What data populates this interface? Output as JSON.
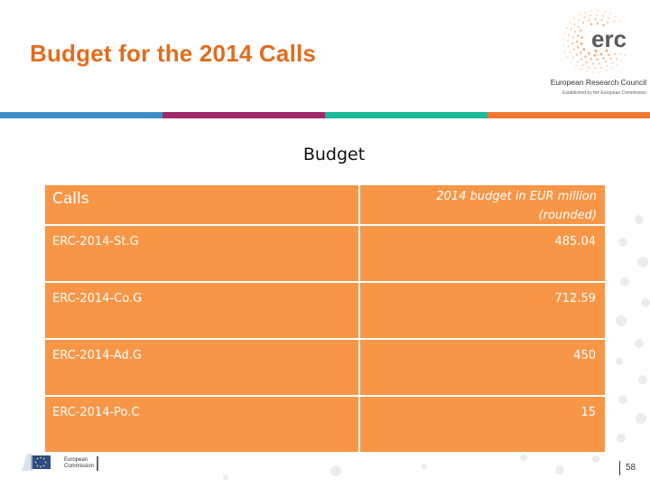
{
  "slide": {
    "title": "Budget for the 2014 Calls",
    "page_number": "58"
  },
  "logo": {
    "mark": "erc",
    "name": "European Research Council",
    "tagline": "Established by the European Commission"
  },
  "footer": {
    "ec_label_line1": "European",
    "ec_label_line2": "Commission"
  },
  "colors": {
    "title": "#e36c1c",
    "table_fill": "#f79646",
    "bar_blue": "#3b8ec8",
    "bar_purple": "#a0286a",
    "bar_teal": "#1cb89a",
    "bar_orange": "#f0782d"
  },
  "table": {
    "caption": "Budget",
    "headers": {
      "calls": "Calls",
      "budget": "2014 budget in EUR million (rounded)"
    },
    "rows": [
      {
        "call": "ERC-2014-St.G",
        "budget": "485.04"
      },
      {
        "call": "ERC-2014-Co.G",
        "budget": "712.59"
      },
      {
        "call": "ERC-2014-Ad.G",
        "budget": "450"
      },
      {
        "call": "ERC-2014-Po.C",
        "budget": "15"
      }
    ]
  }
}
